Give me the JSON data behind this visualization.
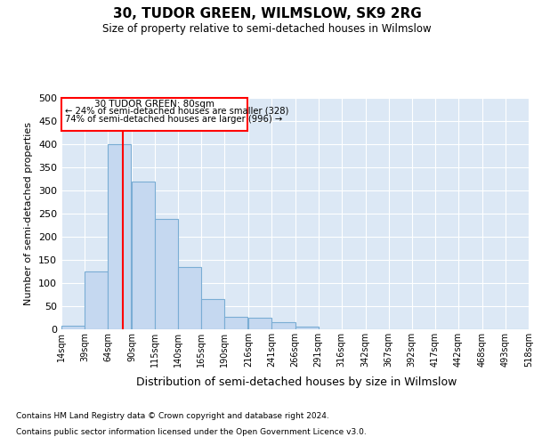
{
  "title": "30, TUDOR GREEN, WILMSLOW, SK9 2RG",
  "subtitle": "Size of property relative to semi-detached houses in Wilmslow",
  "xlabel": "Distribution of semi-detached houses by size in Wilmslow",
  "ylabel": "Number of semi-detached properties",
  "bin_labels": [
    "14sqm",
    "39sqm",
    "64sqm",
    "90sqm",
    "115sqm",
    "140sqm",
    "165sqm",
    "190sqm",
    "216sqm",
    "241sqm",
    "266sqm",
    "291sqm",
    "316sqm",
    "342sqm",
    "367sqm",
    "392sqm",
    "417sqm",
    "442sqm",
    "468sqm",
    "493sqm",
    "518sqm"
  ],
  "bin_edges": [
    14,
    39,
    64,
    90,
    115,
    140,
    165,
    190,
    216,
    241,
    266,
    291,
    316,
    342,
    367,
    392,
    417,
    442,
    468,
    493,
    518
  ],
  "bar_heights": [
    8,
    125,
    400,
    320,
    238,
    135,
    65,
    27,
    25,
    15,
    5,
    0,
    0,
    0,
    0,
    0,
    0,
    0,
    0,
    0
  ],
  "bar_color": "#c5d8f0",
  "bar_edge_color": "#7aadd4",
  "red_line_x": 80,
  "annotation_title": "30 TUDOR GREEN: 80sqm",
  "annotation_line1": "← 24% of semi-detached houses are smaller (328)",
  "annotation_line2": "74% of semi-detached houses are larger (996) →",
  "ylim": [
    0,
    500
  ],
  "yticks": [
    0,
    50,
    100,
    150,
    200,
    250,
    300,
    350,
    400,
    450,
    500
  ],
  "plot_bg_color": "#dce8f5",
  "footer_line1": "Contains HM Land Registry data © Crown copyright and database right 2024.",
  "footer_line2": "Contains public sector information licensed under the Open Government Licence v3.0."
}
